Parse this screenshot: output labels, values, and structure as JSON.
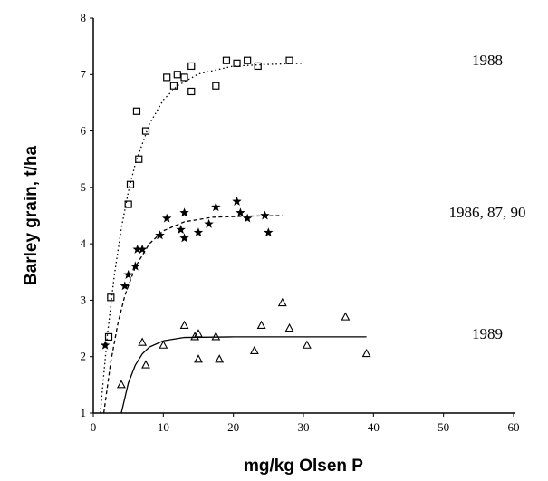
{
  "chart_data": {
    "type": "scatter",
    "xlabel": "mg/kg Olsen P",
    "ylabel": "Barley grain, t/ha",
    "xlim": [
      0,
      60
    ],
    "xticks": [
      0,
      10,
      20,
      30,
      40,
      50,
      60
    ],
    "ylim": [
      1,
      8
    ],
    "yticks": [
      1,
      2,
      3,
      4,
      5,
      6,
      7,
      8
    ],
    "series": [
      {
        "name": "1988",
        "color": "#000000",
        "marker": "square",
        "line": "dotted",
        "x": [
          2.2,
          2.5,
          5,
          5.3,
          6.2,
          6.5,
          7.5,
          10.5,
          11.5,
          12,
          13,
          14,
          14,
          17.5,
          19,
          20.5,
          22,
          23.5,
          28
        ],
        "values": [
          2.35,
          3.05,
          4.7,
          5.05,
          6.35,
          5.5,
          6.0,
          6.95,
          6.8,
          7.0,
          6.95,
          7.15,
          6.7,
          6.8,
          7.25,
          7.2,
          7.25,
          7.15,
          7.25
        ],
        "fit": {
          "x": [
            1,
            2,
            3,
            4,
            5,
            6,
            8,
            10,
            12,
            15,
            20,
            25,
            30
          ],
          "values": [
            1,
            2.37,
            3.44,
            4.27,
            4.92,
            5.42,
            6.12,
            6.55,
            6.8,
            7.01,
            7.15,
            7.18,
            7.2
          ]
        }
      },
      {
        "name": "1986, 87, 90",
        "color": "#000000",
        "marker": "star",
        "line": "dashed",
        "x": [
          1.7,
          4.5,
          5,
          6,
          6.3,
          7,
          9.5,
          10.5,
          12.5,
          13,
          13,
          15,
          16.5,
          17.5,
          20.5,
          21,
          22,
          24.5,
          25
        ],
        "values": [
          2.2,
          3.25,
          3.45,
          3.6,
          3.9,
          3.9,
          4.15,
          4.45,
          4.25,
          4.55,
          4.1,
          4.2,
          4.35,
          4.65,
          4.75,
          4.55,
          4.45,
          4.5,
          4.2
        ],
        "fit": {
          "x": [
            1.5,
            2.5,
            3.5,
            4.5,
            6,
            8,
            10,
            13,
            17,
            22,
            27
          ],
          "values": [
            1,
            1.91,
            2.58,
            3.08,
            3.59,
            4.0,
            4.23,
            4.39,
            4.47,
            4.49,
            4.5
          ]
        }
      },
      {
        "name": "1989",
        "color": "#000000",
        "marker": "triangle",
        "line": "solid",
        "x": [
          4,
          7,
          7.5,
          10,
          13,
          14.5,
          15,
          15,
          17.5,
          18,
          23,
          24,
          27,
          28,
          30.5,
          36,
          39
        ],
        "values": [
          1.5,
          2.25,
          1.85,
          2.2,
          2.55,
          2.35,
          2.4,
          1.95,
          2.35,
          1.95,
          2.1,
          2.55,
          2.95,
          2.5,
          2.2,
          2.7,
          2.05
        ],
        "fit": {
          "x": [
            4,
            5,
            6,
            7,
            8,
            10,
            13,
            20,
            39
          ],
          "values": [
            1,
            1.53,
            1.85,
            2.05,
            2.17,
            2.28,
            2.34,
            2.35,
            2.35
          ]
        }
      }
    ]
  }
}
